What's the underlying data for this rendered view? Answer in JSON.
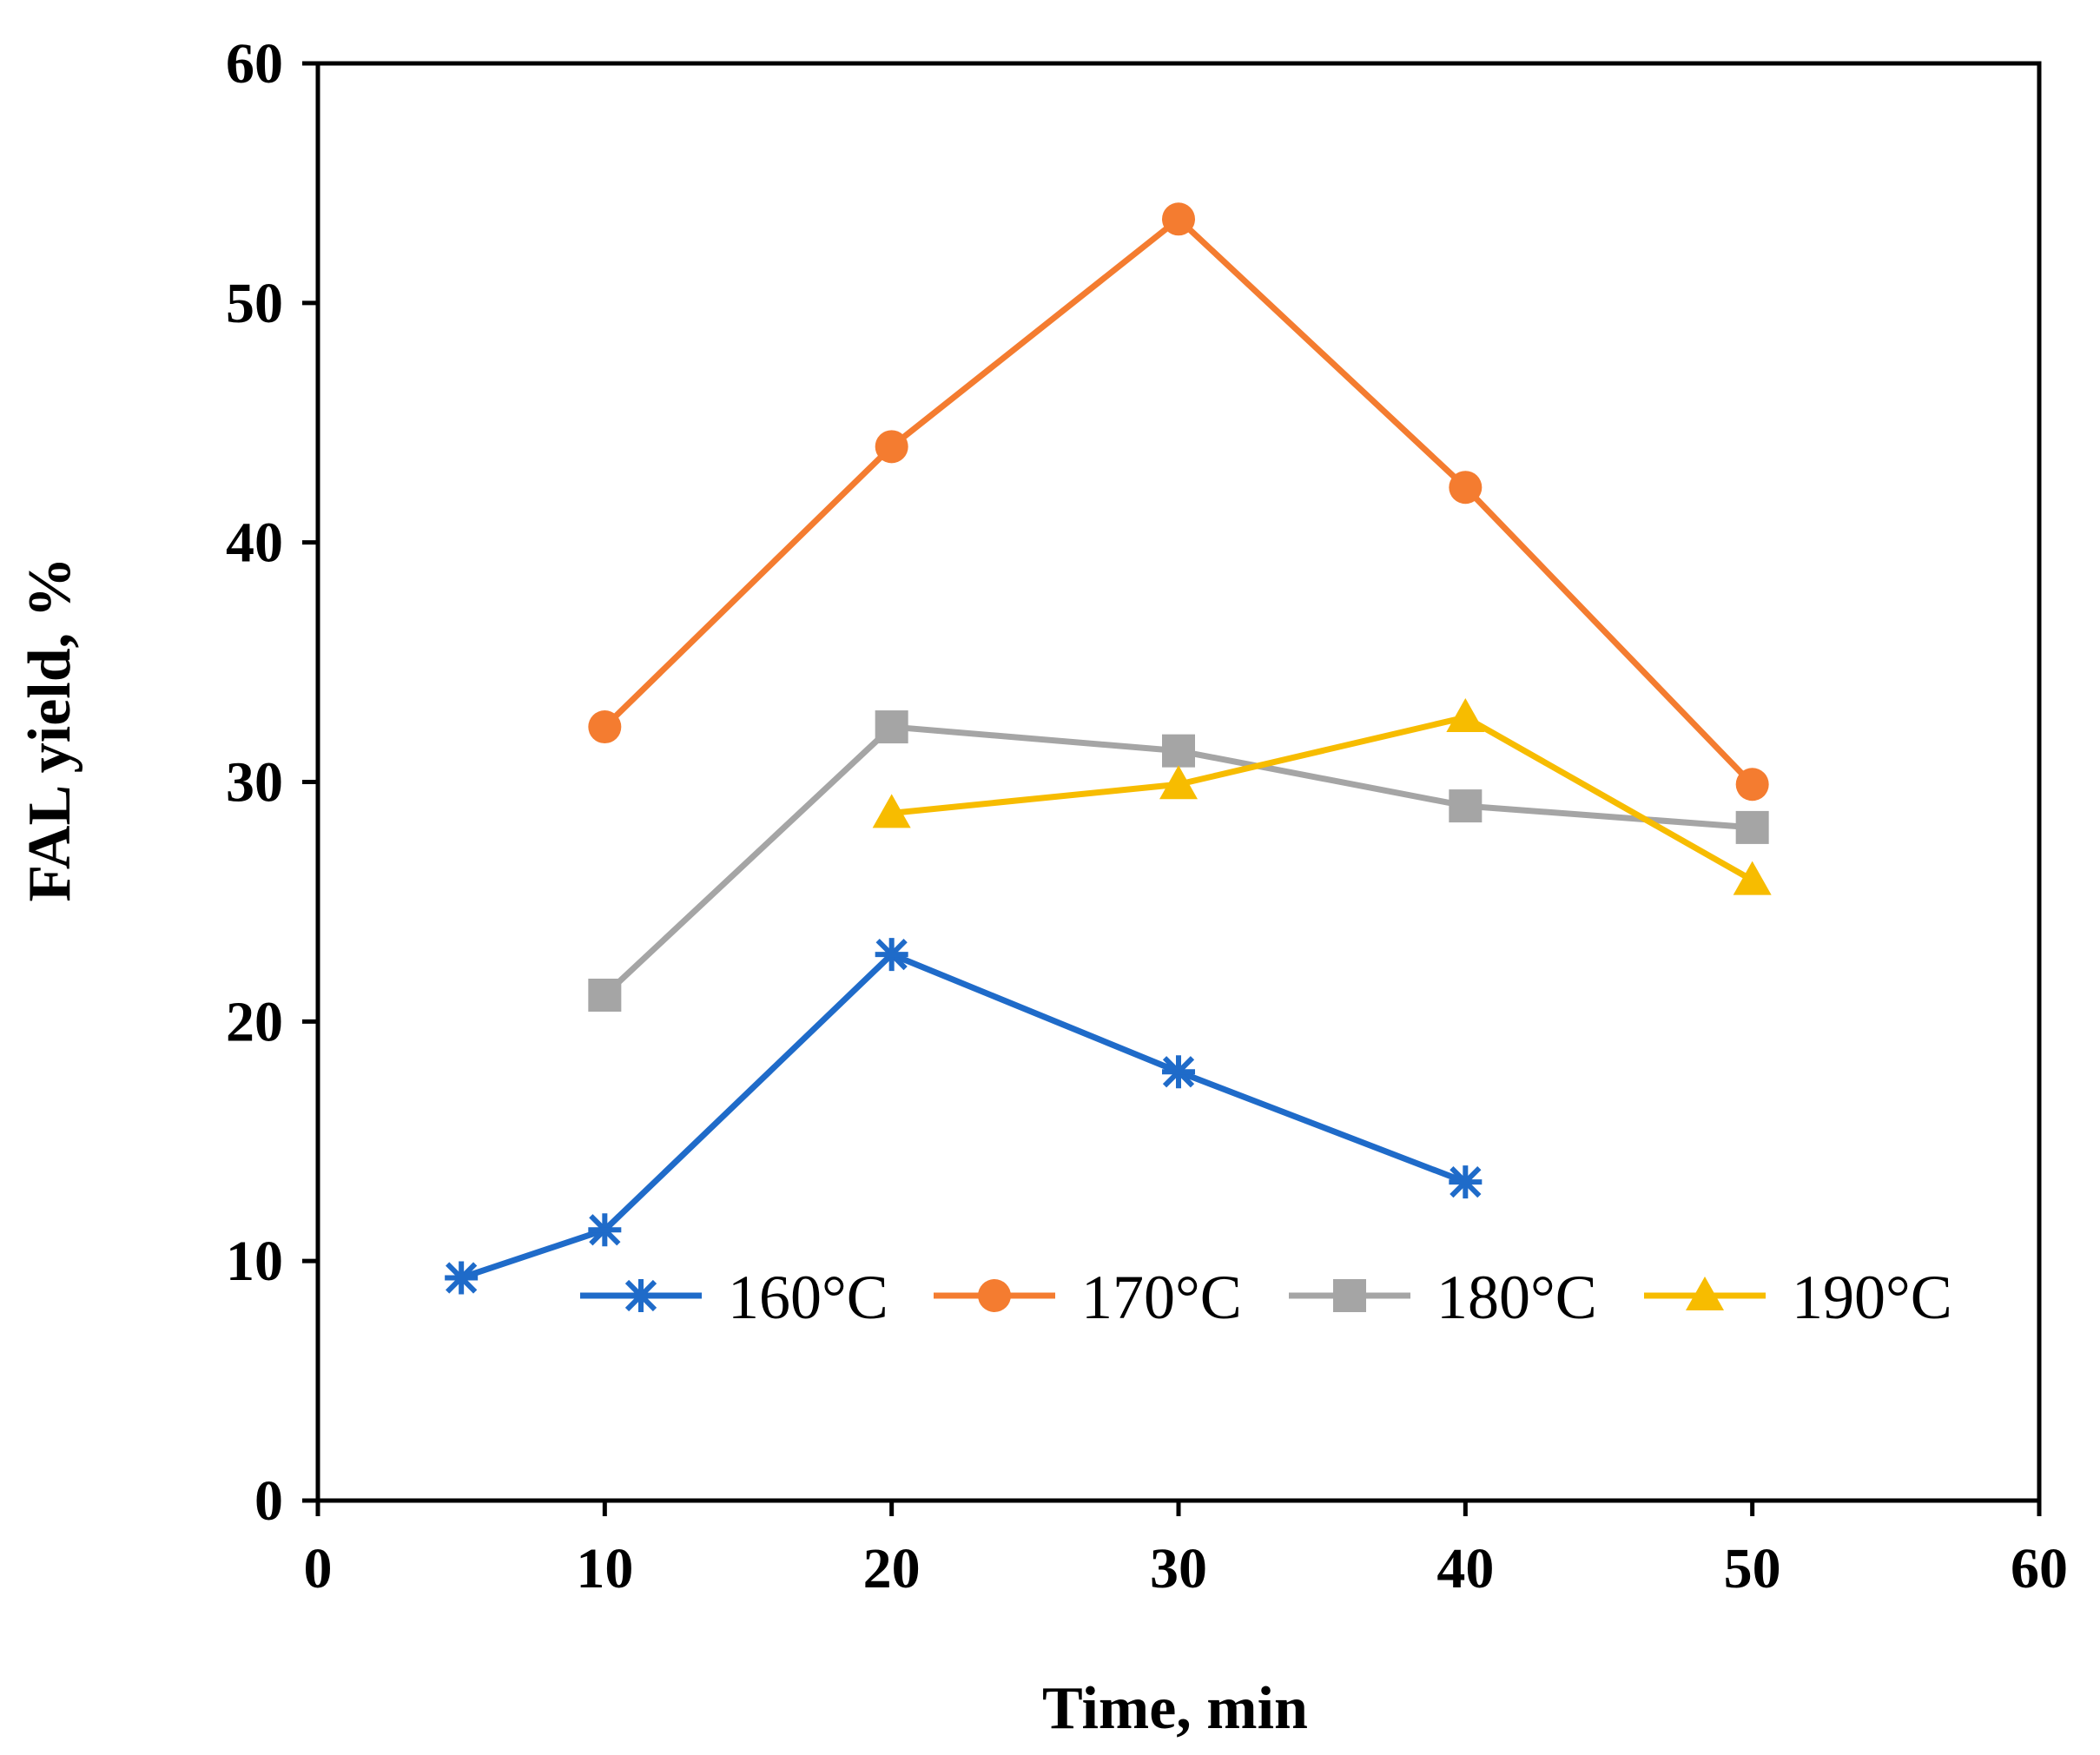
{
  "chart_data": {
    "type": "line",
    "title": "",
    "xlabel": "Time, min",
    "ylabel": "FAL yield, %",
    "xlim": [
      0,
      60
    ],
    "ylim": [
      0,
      60
    ],
    "xticks": [
      0,
      10,
      20,
      30,
      40,
      50,
      60
    ],
    "yticks": [
      0,
      10,
      20,
      30,
      40,
      50,
      60
    ],
    "grid": false,
    "legend_position": "bottom-center-inside",
    "series": [
      {
        "name": "160°C",
        "color": "#1F6BC9",
        "marker": "star",
        "x": [
          5,
          10,
          20,
          30,
          40
        ],
        "y": [
          9.3,
          11.3,
          22.8,
          17.9,
          13.3
        ]
      },
      {
        "name": "170°C",
        "color": "#F47C30",
        "marker": "circle",
        "x": [
          10,
          20,
          30,
          40,
          50
        ],
        "y": [
          32.3,
          44.0,
          53.5,
          42.3,
          29.9
        ]
      },
      {
        "name": "180°C",
        "color": "#A5A5A5",
        "marker": "square",
        "x": [
          10,
          20,
          30,
          40,
          50
        ],
        "y": [
          21.1,
          32.3,
          31.3,
          29.0,
          28.1
        ]
      },
      {
        "name": "190°C",
        "color": "#F7BC00",
        "marker": "triangle",
        "x": [
          20,
          30,
          40,
          50
        ],
        "y": [
          28.7,
          29.9,
          32.7,
          25.9
        ]
      }
    ]
  }
}
